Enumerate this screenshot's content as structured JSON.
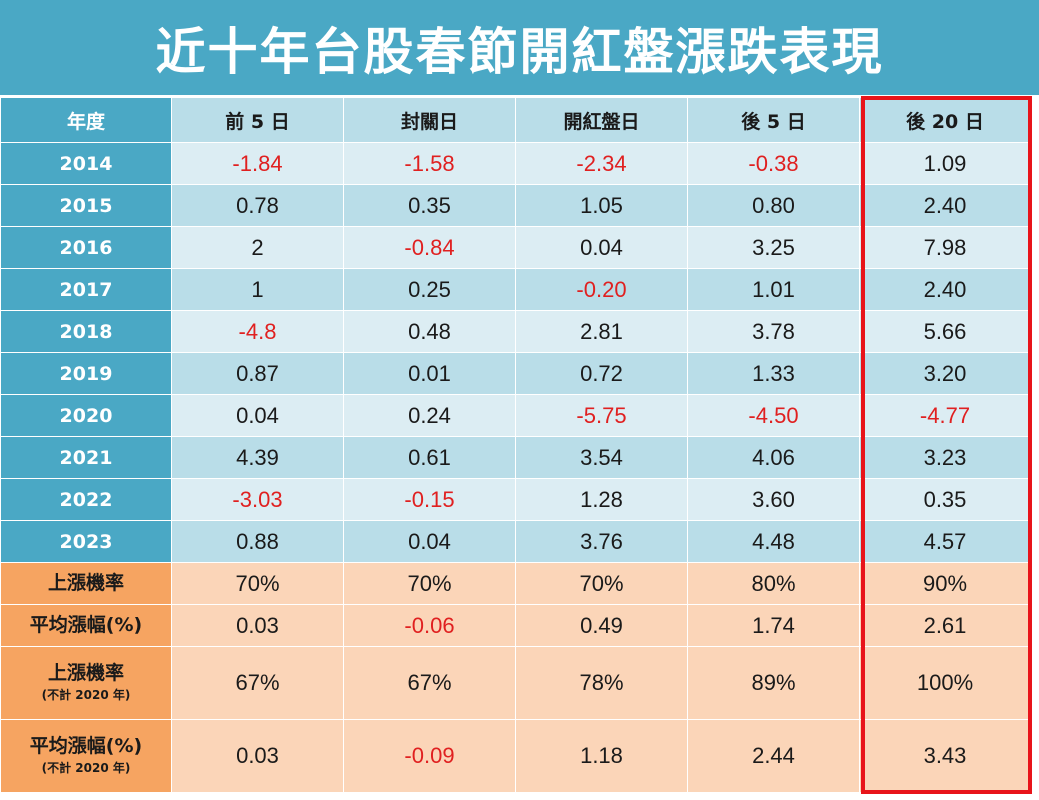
{
  "title": "近十年台股春節開紅盤漲跌表現",
  "header": {
    "corner": "年度",
    "columns": [
      "前 5 日",
      "封關日",
      "開紅盤日",
      "後 5 日",
      "後 20 日"
    ]
  },
  "rows": [
    {
      "year": "2014",
      "values": [
        "-1.84",
        "-1.58",
        "-2.34",
        "-0.38",
        "1.09"
      ]
    },
    {
      "year": "2015",
      "values": [
        "0.78",
        "0.35",
        "1.05",
        "0.80",
        "2.40"
      ]
    },
    {
      "year": "2016",
      "values": [
        "2",
        "-0.84",
        "0.04",
        "3.25",
        "7.98"
      ]
    },
    {
      "year": "2017",
      "values": [
        "1",
        "0.25",
        "-0.20",
        "1.01",
        "2.40"
      ]
    },
    {
      "year": "2018",
      "values": [
        "-4.8",
        "0.48",
        "2.81",
        "3.78",
        "5.66"
      ]
    },
    {
      "year": "2019",
      "values": [
        "0.87",
        "0.01",
        "0.72",
        "1.33",
        "3.20"
      ]
    },
    {
      "year": "2020",
      "values": [
        "0.04",
        "0.24",
        "-5.75",
        "-4.50",
        "-4.77"
      ]
    },
    {
      "year": "2021",
      "values": [
        "4.39",
        "0.61",
        "3.54",
        "4.06",
        "3.23"
      ]
    },
    {
      "year": "2022",
      "values": [
        "-3.03",
        "-0.15",
        "1.28",
        "3.60",
        "0.35"
      ]
    },
    {
      "year": "2023",
      "values": [
        "0.88",
        "0.04",
        "3.76",
        "4.48",
        "4.57"
      ]
    }
  ],
  "stats": [
    {
      "label": "上漲機率",
      "sub": "",
      "values": [
        "70%",
        "70%",
        "70%",
        "80%",
        "90%"
      ]
    },
    {
      "label": "平均漲幅(%)",
      "sub": "",
      "values": [
        "0.03",
        "-0.06",
        "0.49",
        "1.74",
        "2.61"
      ]
    },
    {
      "label": "上漲機率",
      "sub": "(不計 2020 年)",
      "values": [
        "67%",
        "67%",
        "78%",
        "89%",
        "100%"
      ]
    },
    {
      "label": "平均漲幅(%)",
      "sub": "(不計 2020 年)",
      "values": [
        "0.03",
        "-0.09",
        "1.18",
        "2.44",
        "3.43"
      ]
    }
  ],
  "colors": {
    "header_blue": "#4aa8c5",
    "row_light": "#dcedf3",
    "row_mid": "#b9dde8",
    "stat_label": "#f6a461",
    "stat_cell": "#fbd5b8",
    "negative": "#e02020",
    "highlight_border": "#e8141a"
  },
  "highlighted_column": "後 20 日"
}
